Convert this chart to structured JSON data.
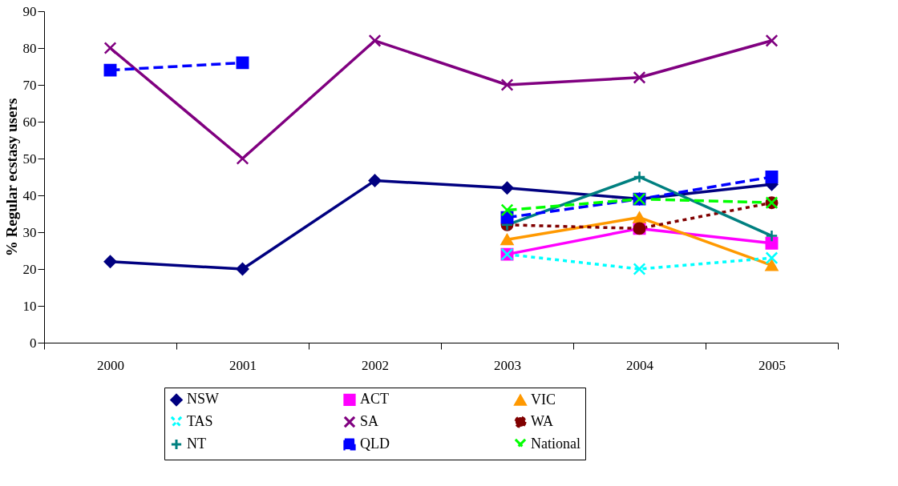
{
  "chart_data": {
    "type": "line",
    "ylabel": "% Regular ecstasy users",
    "categories": [
      "2000",
      "2001",
      "2002",
      "2003",
      "2004",
      "2005"
    ],
    "ylim": [
      0,
      90
    ],
    "yticks": [
      0,
      10,
      20,
      30,
      40,
      50,
      60,
      70,
      80,
      90
    ],
    "grid": false,
    "legend": "bottom",
    "series": [
      {
        "name": "NSW",
        "color": "#000080",
        "marker": "diamond",
        "line_style": "solid",
        "values": [
          22,
          20,
          44,
          42,
          39,
          43
        ]
      },
      {
        "name": "ACT",
        "color": "#ff00ff",
        "marker": "square",
        "line_style": "solid",
        "values": [
          null,
          null,
          null,
          24,
          31,
          27
        ]
      },
      {
        "name": "VIC",
        "color": "#ff9900",
        "marker": "triangle",
        "line_style": "solid",
        "values": [
          null,
          null,
          null,
          28,
          34,
          21
        ]
      },
      {
        "name": "TAS",
        "color": "#00ffff",
        "marker": "cross",
        "line_style": "dotted",
        "values": [
          null,
          null,
          null,
          24,
          20,
          23
        ]
      },
      {
        "name": "SA",
        "color": "#800080",
        "marker": "cross",
        "line_style": "solid",
        "values": [
          80,
          50,
          82,
          70,
          72,
          82
        ]
      },
      {
        "name": "WA",
        "color": "#800000",
        "marker": "circle",
        "line_style": "dotted",
        "values": [
          null,
          null,
          null,
          32,
          31,
          38
        ]
      },
      {
        "name": "NT",
        "color": "#008080",
        "marker": "plus",
        "line_style": "solid",
        "values": [
          null,
          null,
          null,
          32,
          45,
          29
        ]
      },
      {
        "name": "QLD",
        "color": "#0000ff",
        "marker": "square",
        "line_style": "dashed",
        "values": [
          74,
          76,
          null,
          34,
          39,
          45
        ]
      },
      {
        "name": "National",
        "color": "#00ff00",
        "marker": "cross",
        "line_style": "dashed",
        "values": [
          null,
          null,
          null,
          36,
          39,
          38
        ]
      }
    ]
  }
}
